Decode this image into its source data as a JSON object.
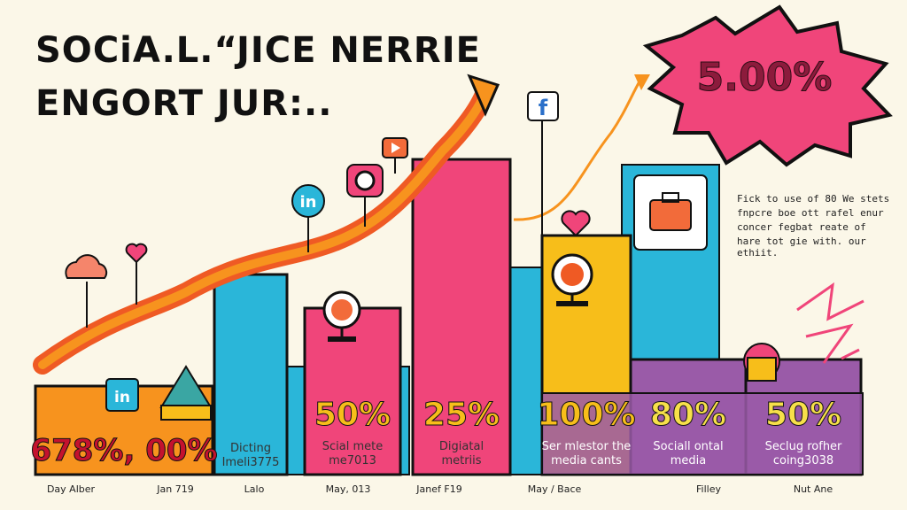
{
  "title_lines": [
    "SOCiA.L.“JICE NERRIE",
    "ENGORT JUR:.."
  ],
  "burst_label": "5.00%",
  "note_lines": [
    "Fick to use of 80 We stets",
    "fnpcre boe ott rafel enur",
    "concer fegbat reate of",
    "hare tot gie with. our ethiit."
  ],
  "colors": {
    "background": "#fbf7e8",
    "orange": "#f7931e",
    "red_orange": "#ef5a24",
    "cyan": "#2ab6d9",
    "pink": "#f0457a",
    "yellow": "#f7be1a",
    "purple": "#9a5ba8",
    "burst": "#f0457a"
  },
  "icons": [
    "twitter-icon",
    "linkedin-icon",
    "instagram-icon",
    "youtube-icon",
    "facebook-icon",
    "cloud-icon",
    "heart-icon",
    "briefcase-icon",
    "trophy-icon"
  ],
  "chart_data": {
    "type": "bar",
    "bars": [
      {
        "label": "678%, 00%",
        "caption": [],
        "category": "Day Alber",
        "height": 100,
        "color": "#f7931e"
      },
      {
        "label": "",
        "caption": [
          "Dicting",
          "Imeli3775"
        ],
        "category": "Jan 719",
        "height": 226,
        "color": "#2ab6d9"
      },
      {
        "label": "50%",
        "caption": [
          "Scial mete",
          "me7013"
        ],
        "category": "Lalo",
        "height": 188,
        "color": "#f0457a"
      },
      {
        "label": "25%",
        "caption": [
          "Digiatal",
          "metriis"
        ],
        "category": "May, 013",
        "height": 356,
        "color": "#f0457a"
      },
      {
        "label": "100%",
        "caption": [
          "Ser mlestor the",
          "media cants"
        ],
        "category": "Janef F19",
        "height": 270,
        "color": "#f7be1a"
      },
      {
        "label": "80%",
        "caption": [
          "Sociall ontal",
          "media"
        ],
        "category": "May / Bace",
        "height": 130,
        "color": "#9a5ba8"
      },
      {
        "label": "50%",
        "caption": [
          "Seclug rofher",
          "coing3038"
        ],
        "category": "Filley",
        "height": 130,
        "color": "#9a5ba8"
      }
    ],
    "extra_category": "Nut Ane",
    "trend": "rising arrow"
  }
}
